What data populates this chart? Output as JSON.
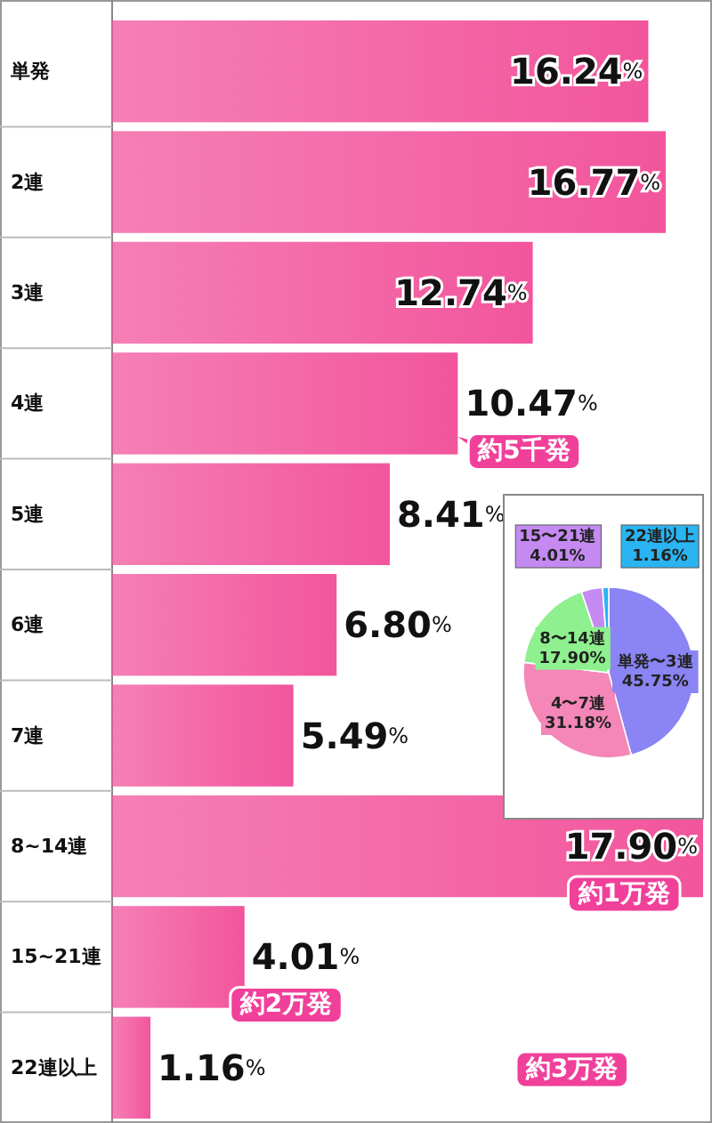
{
  "chart_data": [
    {
      "type": "bar",
      "orientation": "horizontal",
      "color": "#f2559c",
      "categories": [
        "単発",
        "2連",
        "3連",
        "4連",
        "5連",
        "6連",
        "7連",
        "8~14連",
        "15~21連",
        "22連以上"
      ],
      "values": [
        16.24,
        16.77,
        12.74,
        10.47,
        8.41,
        6.8,
        5.49,
        17.9,
        4.01,
        1.16
      ],
      "value_labels": [
        "16.24%",
        "16.77%",
        "12.74%",
        "10.47%",
        "8.41%",
        "6.80%",
        "5.49%",
        "17.90%",
        "4.01%",
        "1.16%"
      ],
      "annotations": [
        {
          "text": "約5千発",
          "x": 10.47,
          "y": "4連"
        },
        {
          "text": "約1万発",
          "x": 17.9,
          "y": "8~14連"
        },
        {
          "text": "約2万発",
          "x": 4.01,
          "y": "15~21連"
        },
        "約3万発"
      ]
    },
    {
      "type": "pie",
      "categories": [
        "単発〜3連",
        "4〜7連",
        "8〜14連",
        "15〜21連",
        "22連以上"
      ],
      "values": [
        45.75,
        31.18,
        17.9,
        4.01,
        1.16
      ],
      "colors": [
        "#8a84f4",
        "#f487b8",
        "#8ef08e",
        "#c48af2",
        "#2ab4f2"
      ],
      "value_labels": [
        "45.75%",
        "31.18%",
        "17.90%",
        "4.01%",
        "1.16%"
      ]
    }
  ]
}
